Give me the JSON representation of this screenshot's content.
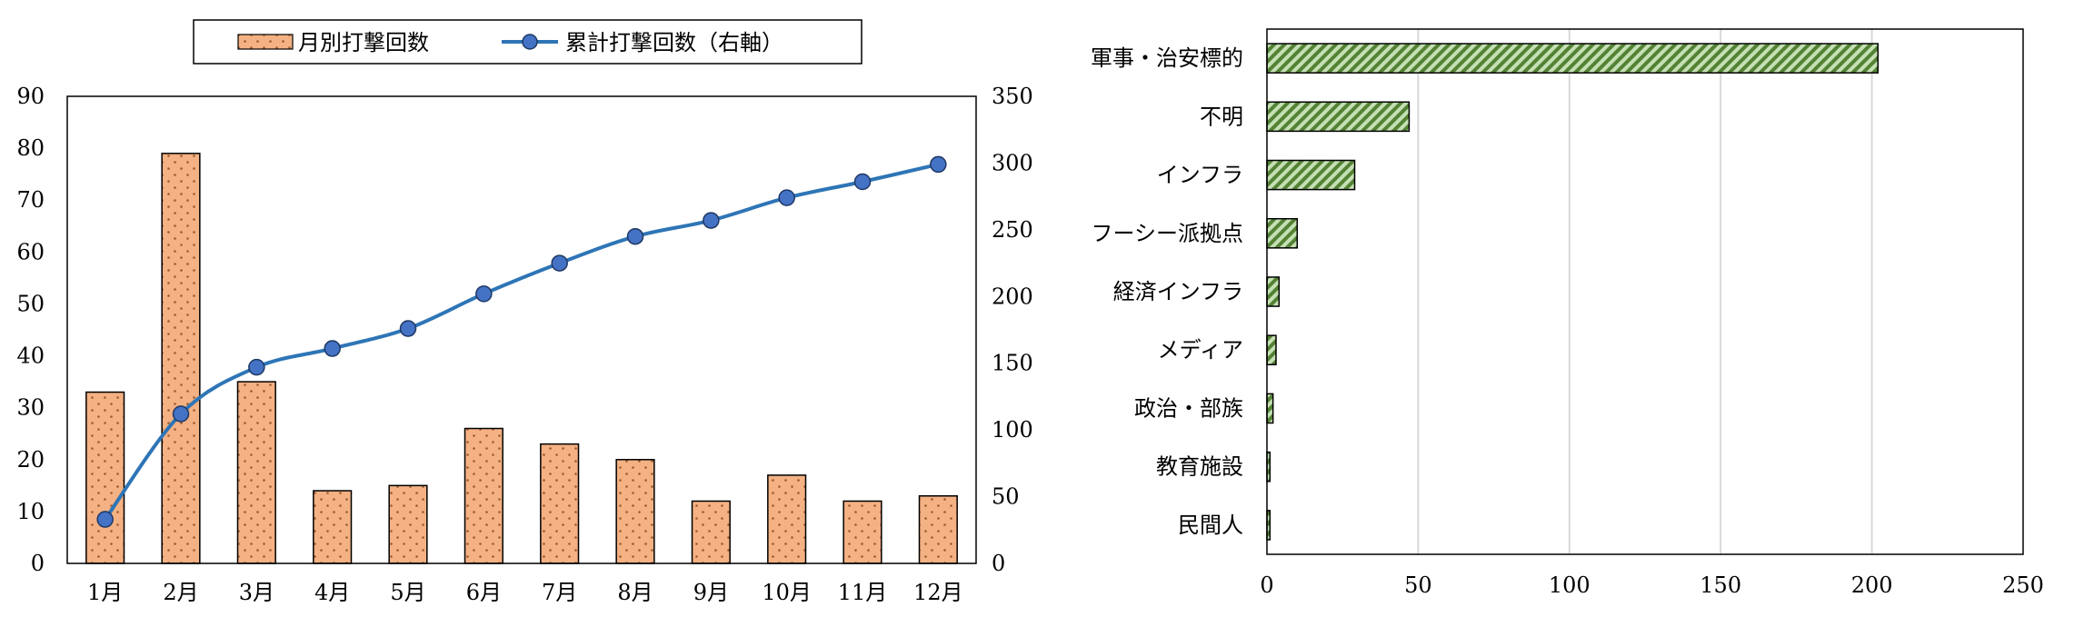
{
  "chart_data": [
    {
      "type": "bar+line",
      "title": "",
      "xlabel": "",
      "ylabel": "",
      "y2label": "",
      "legend_position": "top",
      "categories": [
        "1月",
        "2月",
        "3月",
        "4月",
        "5月",
        "6月",
        "7月",
        "8月",
        "9月",
        "10月",
        "11月",
        "12月"
      ],
      "series": [
        {
          "name": "月別打撃回数",
          "type": "bar",
          "axis": "left",
          "color": "#f4b183",
          "values": [
            33,
            79,
            35,
            14,
            15,
            26,
            23,
            20,
            12,
            17,
            12,
            13
          ]
        },
        {
          "name": "累計打撃回数（右軸）",
          "type": "line",
          "axis": "right",
          "color": "#2e75b6",
          "marker_color": "#4472c4",
          "values": [
            33,
            112,
            147,
            161,
            176,
            202,
            225,
            245,
            257,
            274,
            286,
            299
          ]
        }
      ],
      "ylim": [
        0,
        90
      ],
      "y_ticks": [
        0,
        10,
        20,
        30,
        40,
        50,
        60,
        70,
        80,
        90
      ],
      "y2lim": [
        0,
        350
      ],
      "y2_ticks": [
        0,
        50,
        100,
        150,
        200,
        250,
        300,
        350
      ],
      "grid": false
    },
    {
      "type": "bar",
      "orientation": "horizontal",
      "title": "",
      "xlabel": "",
      "ylabel": "",
      "categories": [
        "軍事・治安標的",
        "不明",
        "インフラ",
        "フーシー派拠点",
        "経済インフラ",
        "メディア",
        "政治・部族",
        "教育施設",
        "民間人"
      ],
      "values": [
        202,
        47,
        29,
        10,
        4,
        3,
        2,
        1,
        1
      ],
      "color": "#a9d18e",
      "hatch_color": "#548235",
      "xlim": [
        0,
        250
      ],
      "x_ticks": [
        0,
        50,
        100,
        150,
        200,
        250
      ],
      "grid": true
    }
  ]
}
